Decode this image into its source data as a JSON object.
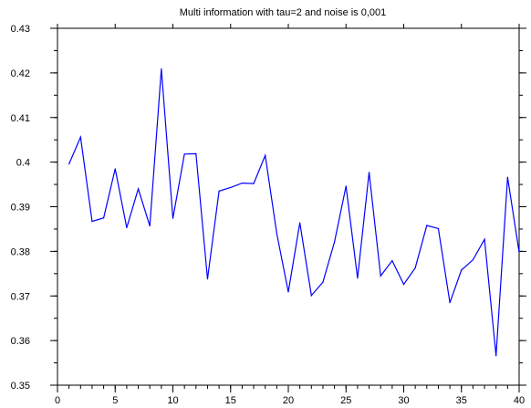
{
  "chart_data": {
    "type": "line",
    "title": "Multi information  with tau=2 and noise is 0,001",
    "xlabel": "",
    "ylabel": "",
    "xlim": [
      0,
      40
    ],
    "ylim": [
      0.35,
      0.43
    ],
    "x_ticks": [
      0,
      5,
      10,
      15,
      20,
      25,
      30,
      35,
      40
    ],
    "y_ticks": [
      0.35,
      0.36,
      0.37,
      0.38,
      0.39,
      0.4,
      0.41,
      0.42,
      0.43
    ],
    "x_tick_labels": [
      "0",
      "5",
      "10",
      "15",
      "20",
      "25",
      "30",
      "35",
      "40"
    ],
    "y_tick_labels": [
      "0.35",
      "0.36",
      "0.37",
      "0.38",
      "0.39",
      "0.4",
      "0.41",
      "0.42",
      "0.43"
    ],
    "grid": false,
    "line_color": "#0000ff",
    "series": [
      {
        "x": [
          1,
          2,
          3,
          4,
          5,
          6,
          7,
          8,
          9,
          10,
          11,
          12,
          13,
          14,
          15,
          16,
          17,
          18,
          19,
          20,
          21,
          22,
          23,
          24,
          25,
          26,
          27,
          28,
          29,
          30,
          31,
          32,
          33,
          34,
          35,
          36,
          37,
          38,
          39,
          40
        ],
        "values": [
          0.3996,
          0.4056,
          0.3867,
          0.3875,
          0.3985,
          0.3853,
          0.394,
          0.3857,
          0.4209,
          0.3874,
          0.4018,
          0.4019,
          0.3738,
          0.3935,
          0.3943,
          0.3953,
          0.3952,
          0.4015,
          0.384,
          0.3709,
          0.3864,
          0.3701,
          0.3731,
          0.3821,
          0.3946,
          0.374,
          0.3977,
          0.3745,
          0.3779,
          0.3726,
          0.3763,
          0.3858,
          0.3851,
          0.3685,
          0.3758,
          0.3781,
          0.3827,
          0.3566,
          0.3966,
          0.3798
        ]
      }
    ]
  }
}
